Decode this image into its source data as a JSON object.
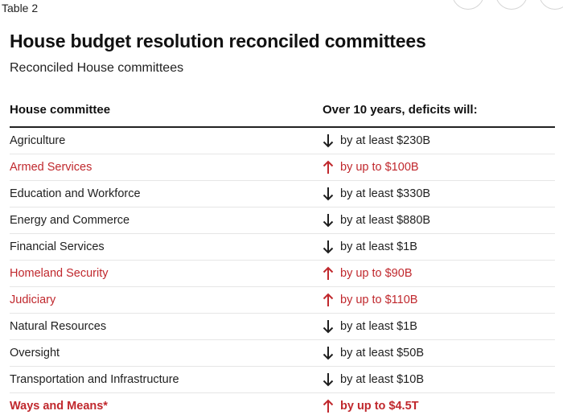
{
  "caption": "Table 2",
  "title": "House budget resolution reconciled committees",
  "subtitle": "Reconciled House committees",
  "columns": {
    "committee": "House committee",
    "deficit": "Over 10 years, deficits will:"
  },
  "colors": {
    "increase": "#c0282d",
    "decrease": "#1f1f1f"
  },
  "rows": [
    {
      "committee": "Agriculture",
      "direction": "down",
      "icon": "arrow-down-icon",
      "deficit": "by at least $230B",
      "bold": false
    },
    {
      "committee": "Armed Services",
      "direction": "up",
      "icon": "arrow-up-icon",
      "deficit": "by up to $100B",
      "bold": false
    },
    {
      "committee": "Education and Workforce",
      "direction": "down",
      "icon": "arrow-down-icon",
      "deficit": "by at least $330B",
      "bold": false
    },
    {
      "committee": "Energy and Commerce",
      "direction": "down",
      "icon": "arrow-down-icon",
      "deficit": "by at least $880B",
      "bold": false
    },
    {
      "committee": "Financial Services",
      "direction": "down",
      "icon": "arrow-down-icon",
      "deficit": "by at least $1B",
      "bold": false
    },
    {
      "committee": "Homeland Security",
      "direction": "up",
      "icon": "arrow-up-icon",
      "deficit": "by up to $90B",
      "bold": false
    },
    {
      "committee": "Judiciary",
      "direction": "up",
      "icon": "arrow-up-icon",
      "deficit": "by up to $110B",
      "bold": false
    },
    {
      "committee": "Natural Resources",
      "direction": "down",
      "icon": "arrow-down-icon",
      "deficit": "by at least $1B",
      "bold": false
    },
    {
      "committee": "Oversight",
      "direction": "down",
      "icon": "arrow-down-icon",
      "deficit": "by at least $50B",
      "bold": false
    },
    {
      "committee": "Transportation and Infrastructure",
      "direction": "down",
      "icon": "arrow-down-icon",
      "deficit": "by at least $10B",
      "bold": false
    },
    {
      "committee": "Ways and Means*",
      "direction": "up",
      "icon": "arrow-up-icon",
      "deficit": "by up to $4.5T",
      "bold": true
    }
  ]
}
